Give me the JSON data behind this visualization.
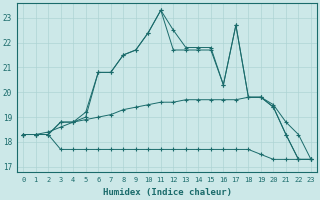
{
  "xlabel": "Humidex (Indice chaleur)",
  "background_color": "#cce8e8",
  "grid_color": "#aed4d4",
  "line_color": "#1a6b6b",
  "xlim": [
    -0.5,
    23.5
  ],
  "ylim": [
    16.8,
    23.6
  ],
  "yticks": [
    17,
    18,
    19,
    20,
    21,
    22,
    23
  ],
  "xticks": [
    0,
    1,
    2,
    3,
    4,
    5,
    6,
    7,
    8,
    9,
    10,
    11,
    12,
    13,
    14,
    15,
    16,
    17,
    18,
    19,
    20,
    21,
    22,
    23
  ],
  "series": {
    "line1_min": [
      18.3,
      18.3,
      18.3,
      17.7,
      17.7,
      17.7,
      17.7,
      17.7,
      17.7,
      17.7,
      17.7,
      17.7,
      17.7,
      17.7,
      17.7,
      17.7,
      17.7,
      17.7,
      17.7,
      17.5,
      17.3,
      17.3,
      17.3,
      17.3
    ],
    "line2_smooth": [
      18.3,
      18.3,
      18.4,
      18.6,
      18.8,
      18.9,
      19.0,
      19.1,
      19.3,
      19.4,
      19.5,
      19.6,
      19.6,
      19.7,
      19.7,
      19.7,
      19.7,
      19.7,
      19.8,
      19.8,
      19.5,
      18.8,
      18.3,
      17.3
    ],
    "line3_jagged": [
      18.3,
      18.3,
      18.3,
      18.8,
      18.8,
      19.0,
      20.8,
      20.8,
      21.5,
      21.7,
      22.4,
      23.3,
      21.7,
      21.7,
      21.7,
      21.7,
      20.3,
      22.7,
      19.8,
      19.8,
      19.4,
      18.3,
      17.3,
      17.3
    ],
    "line4_upper": [
      18.3,
      18.3,
      18.3,
      18.8,
      18.8,
      19.2,
      20.8,
      20.8,
      21.5,
      21.7,
      22.4,
      23.3,
      22.5,
      21.8,
      21.8,
      21.8,
      20.3,
      22.7,
      19.8,
      19.8,
      19.4,
      18.3,
      17.3,
      17.3
    ]
  }
}
